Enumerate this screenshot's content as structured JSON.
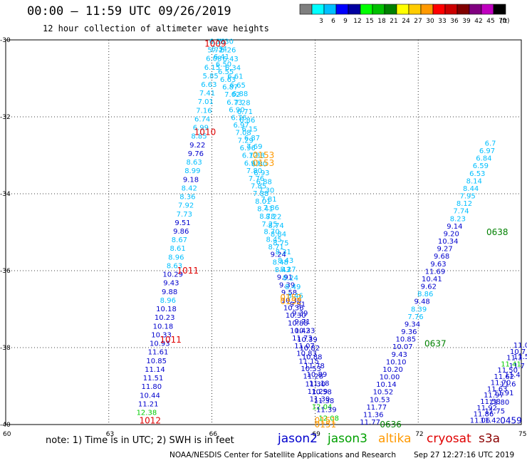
{
  "header": {
    "title": "00:00 – 11:59 UTC 09/26/2019",
    "subtitle": "12 hour collection of altimeter wave heights"
  },
  "legend": {
    "unit": "(ft)",
    "bins": [
      {
        "label": "",
        "color": "#7f7f7f"
      },
      {
        "label": "3",
        "color": "#00ffff"
      },
      {
        "label": "6",
        "color": "#00bfff"
      },
      {
        "label": "9",
        "color": "#0000ff"
      },
      {
        "label": "12",
        "color": "#0000a0"
      },
      {
        "label": "15",
        "color": "#00ff00"
      },
      {
        "label": "18",
        "color": "#00c000"
      },
      {
        "label": "21",
        "color": "#008000"
      },
      {
        "label": "24",
        "color": "#ffff00"
      },
      {
        "label": "27",
        "color": "#ffcc00"
      },
      {
        "label": "30",
        "color": "#ff9900"
      },
      {
        "label": "33",
        "color": "#ff0000"
      },
      {
        "label": "36",
        "color": "#cc0000"
      },
      {
        "label": "39",
        "color": "#800000"
      },
      {
        "label": "42",
        "color": "#800080"
      },
      {
        "label": "45",
        "color": "#c000c0"
      },
      {
        "label": "70",
        "color": "#000000"
      }
    ]
  },
  "map": {
    "lon_range": [
      60,
      75
    ],
    "lat_range": [
      -40,
      -30
    ],
    "lon_ticks": [
      "60",
      "63",
      "66",
      "69",
      "72",
      "75"
    ],
    "lat_ticks": [
      "-30",
      "-32",
      "-34",
      "-36",
      "-38",
      "-40"
    ]
  },
  "colors": {
    "lightblue": "#00bfff",
    "blue": "#0000cd",
    "green": "#00cc00",
    "darkgreen": "#008000",
    "orange": "#ff9900",
    "red": "#e00000"
  },
  "time_labels": [
    {
      "text": "1009",
      "lon": 66.1,
      "lat": -30.1,
      "color": "red"
    },
    {
      "text": "1010",
      "lon": 65.8,
      "lat": -32.4,
      "color": "red"
    },
    {
      "text": "1011",
      "lon": 65.3,
      "lat": -36.0,
      "color": "red"
    },
    {
      "text": "1011",
      "lon": 64.8,
      "lat": -37.8,
      "color": "red"
    },
    {
      "text": "1012",
      "lon": 64.2,
      "lat": -39.9,
      "color": "red"
    },
    {
      "text": "0153",
      "lon": 67.5,
      "lat": -33.0,
      "color": "orange"
    },
    {
      "text": "0153",
      "lon": 67.5,
      "lat": -33.2,
      "color": "orange"
    },
    {
      "text": "0152",
      "lon": 68.3,
      "lat": -36.7,
      "color": "orange"
    },
    {
      "text": "0152",
      "lon": 68.3,
      "lat": -36.8,
      "color": "orange"
    },
    {
      "text": "0151",
      "lon": 69.3,
      "lat": -39.9,
      "color": "orange"
    },
    {
      "text": "0151",
      "lon": 69.3,
      "lat": -40.0,
      "color": "orange"
    },
    {
      "text": "0636",
      "lon": 71.2,
      "lat": -40.0,
      "color": "darkgreen"
    },
    {
      "text": "0637",
      "lon": 72.5,
      "lat": -37.9,
      "color": "darkgreen"
    },
    {
      "text": "0638",
      "lon": 74.3,
      "lat": -35.0,
      "color": "darkgreen"
    },
    {
      "text": "0459",
      "lon": 74.7,
      "lat": -39.9,
      "color": "blue"
    }
  ],
  "tracks": [
    {
      "name": "cryosat",
      "lon_start": 66.15,
      "lat_start": -30.1,
      "lon_end": 64.1,
      "lat_end": -39.75,
      "values": [
        {
          "t": "6.36",
          "c": "lightblue"
        },
        {
          "t": "5.72",
          "c": "lightblue"
        },
        {
          "t": "6.08",
          "c": "lightblue"
        },
        {
          "t": "6.15",
          "c": "lightblue"
        },
        {
          "t": "5.85",
          "c": "lightblue"
        },
        {
          "t": "6.63",
          "c": "lightblue"
        },
        {
          "t": "7.41",
          "c": "lightblue"
        },
        {
          "t": "7.01",
          "c": "lightblue"
        },
        {
          "t": "7.16",
          "c": "lightblue"
        },
        {
          "t": "6.74",
          "c": "lightblue"
        },
        {
          "t": "6.99",
          "c": "lightblue"
        },
        {
          "t": "8.85",
          "c": "lightblue"
        },
        {
          "t": "9.22",
          "c": "blue"
        },
        {
          "t": "9.76",
          "c": "blue"
        },
        {
          "t": "8.63",
          "c": "lightblue"
        },
        {
          "t": "8.99",
          "c": "lightblue"
        },
        {
          "t": "9.18",
          "c": "blue"
        },
        {
          "t": "8.42",
          "c": "lightblue"
        },
        {
          "t": "8.36",
          "c": "lightblue"
        },
        {
          "t": "7.92",
          "c": "lightblue"
        },
        {
          "t": "7.73",
          "c": "lightblue"
        },
        {
          "t": "9.51",
          "c": "blue"
        },
        {
          "t": "9.86",
          "c": "blue"
        },
        {
          "t": "8.67",
          "c": "lightblue"
        },
        {
          "t": "8.61",
          "c": "lightblue"
        },
        {
          "t": "8.96",
          "c": "lightblue"
        },
        {
          "t": "8.63",
          "c": "lightblue"
        },
        {
          "t": "10.29",
          "c": "blue"
        },
        {
          "t": "9.43",
          "c": "blue"
        },
        {
          "t": "9.88",
          "c": "blue"
        },
        {
          "t": "8.96",
          "c": "lightblue"
        },
        {
          "t": "10.18",
          "c": "blue"
        },
        {
          "t": "10.23",
          "c": "blue"
        },
        {
          "t": "10.18",
          "c": "blue"
        },
        {
          "t": "10.33",
          "c": "blue"
        },
        {
          "t": "10.93",
          "c": "blue"
        },
        {
          "t": "11.61",
          "c": "blue"
        },
        {
          "t": "10.85",
          "c": "blue"
        },
        {
          "t": "11.14",
          "c": "blue"
        },
        {
          "t": "11.51",
          "c": "blue"
        },
        {
          "t": "11.80",
          "c": "blue"
        },
        {
          "t": "10.44",
          "c": "blue"
        },
        {
          "t": "11.21",
          "c": "blue"
        },
        {
          "t": "12.38",
          "c": "green"
        }
      ]
    },
    {
      "name": "altika-a",
      "lon_start": 66.15,
      "lat_start": -30.1,
      "lon_end": 69.2,
      "lat_end": -39.6,
      "values": [
        {
          "t": "6.38",
          "c": "lightblue"
        },
        {
          "t": "6.34",
          "c": "lightblue"
        },
        {
          "t": "6.41",
          "c": "lightblue"
        },
        {
          "t": "6.50",
          "c": "lightblue"
        },
        {
          "t": "6.55",
          "c": "lightblue"
        },
        {
          "t": "6.63",
          "c": "lightblue"
        },
        {
          "t": "6.87",
          "c": "lightblue"
        },
        {
          "t": "7.02",
          "c": "lightblue"
        },
        {
          "t": "6.73",
          "c": "lightblue"
        },
        {
          "t": "6.90",
          "c": "lightblue"
        },
        {
          "t": "6.76",
          "c": "lightblue"
        },
        {
          "t": "6.97",
          "c": "lightblue"
        },
        {
          "t": "7.08",
          "c": "lightblue"
        },
        {
          "t": "7.29",
          "c": "lightblue"
        },
        {
          "t": "6.96",
          "c": "lightblue"
        },
        {
          "t": "6.12",
          "c": "lightblue"
        },
        {
          "t": "6.93",
          "c": "lightblue"
        },
        {
          "t": "7.80",
          "c": "lightblue"
        },
        {
          "t": "7.76",
          "c": "lightblue"
        },
        {
          "t": "7.85",
          "c": "lightblue"
        },
        {
          "t": "7.88",
          "c": "lightblue"
        },
        {
          "t": "8.01",
          "c": "lightblue"
        },
        {
          "t": "8.41",
          "c": "lightblue"
        },
        {
          "t": "8.78",
          "c": "lightblue"
        },
        {
          "t": "7.25",
          "c": "lightblue"
        },
        {
          "t": "8.70",
          "c": "lightblue"
        },
        {
          "t": "8.45",
          "c": "lightblue"
        },
        {
          "t": "8.71",
          "c": "lightblue"
        },
        {
          "t": "9.24",
          "c": "blue"
        },
        {
          "t": "8.48",
          "c": "lightblue"
        },
        {
          "t": "8.43",
          "c": "lightblue"
        },
        {
          "t": "9.91",
          "c": "blue"
        },
        {
          "t": "9.39",
          "c": "blue"
        },
        {
          "t": "9.58",
          "c": "blue"
        },
        {
          "t": "10.38",
          "c": "blue"
        },
        {
          "t": "10.36",
          "c": "blue"
        },
        {
          "t": "10.30",
          "c": "blue"
        },
        {
          "t": "10.88",
          "c": "blue"
        },
        {
          "t": "10.42",
          "c": "blue"
        },
        {
          "t": "11.73",
          "c": "blue"
        },
        {
          "t": "11.07",
          "c": "blue"
        },
        {
          "t": "10.83",
          "c": "blue"
        },
        {
          "t": "11.15",
          "c": "blue"
        },
        {
          "t": "10.53",
          "c": "blue"
        },
        {
          "t": "11.28",
          "c": "blue"
        },
        {
          "t": "11.30",
          "c": "blue"
        },
        {
          "t": "11.29",
          "c": "blue"
        },
        {
          "t": "11.30",
          "c": "blue"
        },
        {
          "t": "12.04",
          "c": "green"
        }
      ]
    },
    {
      "name": "altika-b",
      "lon_start": 66.4,
      "lat_start": -30.1,
      "lon_end": 69.4,
      "lat_end": -39.9,
      "values": [
        {
          "t": "6.30",
          "c": "lightblue"
        },
        {
          "t": "6.26",
          "c": "lightblue"
        },
        {
          "t": "6.43",
          "c": "lightblue"
        },
        {
          "t": "6.34",
          "c": "lightblue"
        },
        {
          "t": "6.61",
          "c": "lightblue"
        },
        {
          "t": "6.65",
          "c": "lightblue"
        },
        {
          "t": "6.88",
          "c": "lightblue"
        },
        {
          "t": "7.28",
          "c": "lightblue"
        },
        {
          "t": "6.71",
          "c": "lightblue"
        },
        {
          "t": "6.86",
          "c": "lightblue"
        },
        {
          "t": "6.15",
          "c": "lightblue"
        },
        {
          "t": "6.87",
          "c": "lightblue"
        },
        {
          "t": "7.69",
          "c": "lightblue"
        },
        {
          "t": "7.38",
          "c": "lightblue"
        },
        {
          "t": "6.80",
          "c": "lightblue"
        },
        {
          "t": "6.93",
          "c": "lightblue"
        },
        {
          "t": "6.88",
          "c": "lightblue"
        },
        {
          "t": "7.30",
          "c": "lightblue"
        },
        {
          "t": "7.81",
          "c": "lightblue"
        },
        {
          "t": "7.86",
          "c": "lightblue"
        },
        {
          "t": "8.22",
          "c": "lightblue"
        },
        {
          "t": "8.74",
          "c": "lightblue"
        },
        {
          "t": "8.84",
          "c": "lightblue"
        },
        {
          "t": "8.75",
          "c": "lightblue"
        },
        {
          "t": "8.31",
          "c": "lightblue"
        },
        {
          "t": "8.43",
          "c": "lightblue"
        },
        {
          "t": "8.27",
          "c": "lightblue"
        },
        {
          "t": "8.24",
          "c": "lightblue"
        },
        {
          "t": "8.49",
          "c": "lightblue"
        },
        {
          "t": "8.46",
          "c": "lightblue"
        },
        {
          "t": "9.91",
          "c": "blue"
        },
        {
          "t": "9.39",
          "c": "blue"
        },
        {
          "t": "9.71",
          "c": "blue"
        },
        {
          "t": "10.33",
          "c": "blue"
        },
        {
          "t": "10.39",
          "c": "blue"
        },
        {
          "t": "10.82",
          "c": "blue"
        },
        {
          "t": "10.88",
          "c": "blue"
        },
        {
          "t": "11.78",
          "c": "blue"
        },
        {
          "t": "10.89",
          "c": "blue"
        },
        {
          "t": "11.18",
          "c": "blue"
        },
        {
          "t": "10.58",
          "c": "blue"
        },
        {
          "t": "11.38",
          "c": "blue"
        },
        {
          "t": "11.39",
          "c": "blue"
        },
        {
          "t": "12.08",
          "c": "green"
        }
      ]
    },
    {
      "name": "jason3-a",
      "lon_start": 74.1,
      "lat_start": -32.75,
      "lon_end": 70.6,
      "lat_end": -40.0,
      "values": [
        {
          "t": "6.7",
          "c": "lightblue"
        },
        {
          "t": "6.97",
          "c": "lightblue"
        },
        {
          "t": "6.84",
          "c": "lightblue"
        },
        {
          "t": "6.59",
          "c": "lightblue"
        },
        {
          "t": "6.53",
          "c": "lightblue"
        },
        {
          "t": "8.14",
          "c": "lightblue"
        },
        {
          "t": "8.44",
          "c": "lightblue"
        },
        {
          "t": "7.95",
          "c": "lightblue"
        },
        {
          "t": "8.12",
          "c": "lightblue"
        },
        {
          "t": "7.74",
          "c": "lightblue"
        },
        {
          "t": "8.23",
          "c": "lightblue"
        },
        {
          "t": "9.14",
          "c": "blue"
        },
        {
          "t": "9.20",
          "c": "blue"
        },
        {
          "t": "10.34",
          "c": "blue"
        },
        {
          "t": "9.27",
          "c": "blue"
        },
        {
          "t": "9.68",
          "c": "blue"
        },
        {
          "t": "9.63",
          "c": "blue"
        },
        {
          "t": "11.69",
          "c": "blue"
        },
        {
          "t": "10.41",
          "c": "blue"
        },
        {
          "t": "9.62",
          "c": "blue"
        },
        {
          "t": "8.86",
          "c": "lightblue"
        },
        {
          "t": "9.48",
          "c": "blue"
        },
        {
          "t": "8.39",
          "c": "lightblue"
        },
        {
          "t": "7.76",
          "c": "lightblue"
        },
        {
          "t": "9.34",
          "c": "blue"
        },
        {
          "t": "9.36",
          "c": "blue"
        },
        {
          "t": "10.85",
          "c": "blue"
        },
        {
          "t": "10.07",
          "c": "blue"
        },
        {
          "t": "9.43",
          "c": "blue"
        },
        {
          "t": "10.10",
          "c": "blue"
        },
        {
          "t": "10.20",
          "c": "blue"
        },
        {
          "t": "10.00",
          "c": "blue"
        },
        {
          "t": "10.14",
          "c": "blue"
        },
        {
          "t": "10.52",
          "c": "blue"
        },
        {
          "t": "10.53",
          "c": "blue"
        },
        {
          "t": "11.77",
          "c": "blue"
        },
        {
          "t": "11.36",
          "c": "blue"
        },
        {
          "t": "11.77",
          "c": "blue"
        }
      ]
    },
    {
      "name": "jason2-b",
      "lon_start": 75.0,
      "lat_start": -38.0,
      "lon_end": 73.8,
      "lat_end": -39.95,
      "values": [
        {
          "t": "11.0",
          "c": "blue"
        },
        {
          "t": "10.7",
          "c": "blue"
        },
        {
          "t": "11.3",
          "c": "blue"
        },
        {
          "t": "11.41",
          "c": "green"
        },
        {
          "t": "11.50",
          "c": "blue"
        },
        {
          "t": "11.62",
          "c": "blue"
        },
        {
          "t": "11.70",
          "c": "blue"
        },
        {
          "t": "11.63",
          "c": "blue"
        },
        {
          "t": "11.97",
          "c": "blue"
        },
        {
          "t": "11.58",
          "c": "blue"
        },
        {
          "t": "11.92",
          "c": "blue"
        },
        {
          "t": "11.86",
          "c": "blue"
        },
        {
          "t": "11.06",
          "c": "blue"
        }
      ]
    },
    {
      "name": "jason2-c",
      "lon_start": 75.0,
      "lat_start": -38.3,
      "lon_end": 74.1,
      "lat_end": -39.95,
      "values": [
        {
          "t": "11.5",
          "c": "blue"
        },
        {
          "t": "11.7",
          "c": "blue"
        },
        {
          "t": "11.4",
          "c": "blue"
        },
        {
          "t": "11.6",
          "c": "blue"
        },
        {
          "t": "11.91",
          "c": "blue"
        },
        {
          "t": "11.80",
          "c": "blue"
        },
        {
          "t": "11.75",
          "c": "blue"
        },
        {
          "t": "11.42",
          "c": "blue"
        }
      ]
    }
  ],
  "footer": {
    "note": "note: 1) Time is in UTC; 2) SWH is in feet",
    "satellites": [
      {
        "name": "jason2",
        "color": "#0000cd"
      },
      {
        "name": "jason3",
        "color": "#00a000"
      },
      {
        "name": "altika",
        "color": "#ff9900"
      },
      {
        "name": "cryosat",
        "color": "#e00000"
      },
      {
        "name": "s3a",
        "color": "#8b0000"
      }
    ],
    "credit": "NOAA/NESDIS Center for Satellite Applications and Research",
    "timestamp": "Sep 27 12:27:16 UTC 2019"
  }
}
